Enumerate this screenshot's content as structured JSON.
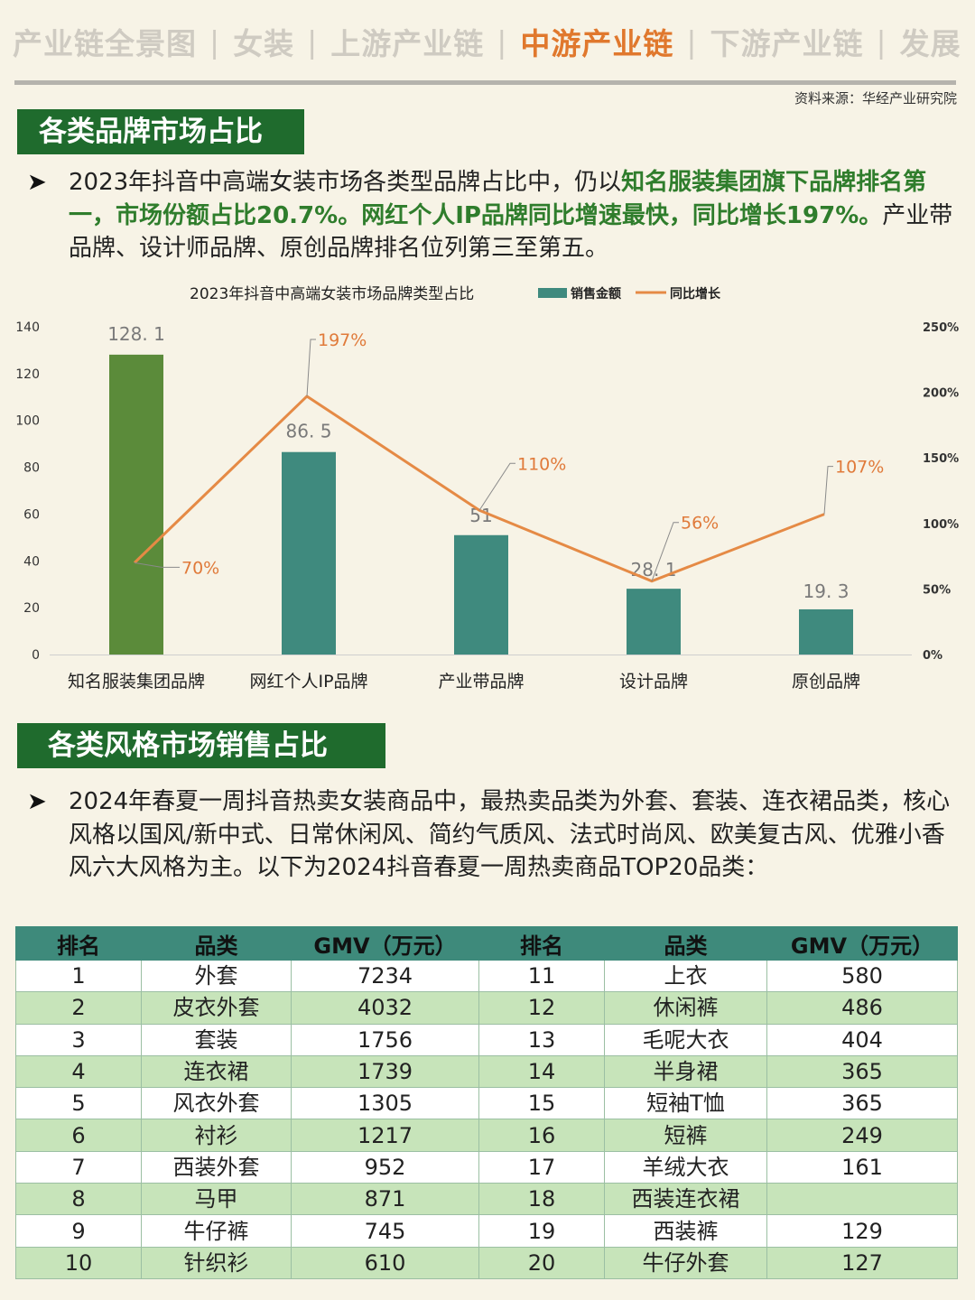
{
  "nav": {
    "items": [
      "产业链全景图",
      "女装",
      "上游产业链",
      "中游产业链",
      "下游产业链",
      "发展"
    ],
    "active_index": 3,
    "separator": "|"
  },
  "source": "资料来源：华经产业研究院",
  "section1": {
    "title": "各类品牌市场占比",
    "bullet": "➤",
    "para_parts": [
      {
        "text": "2023年抖音中高端女装市场各类型品牌占比中，仍以",
        "hl": false
      },
      {
        "text": "知名服装集团旗下品牌排名第一，市场份额占比20.7%。网红个人IP品牌同比增速最快，同比增长197%。",
        "hl": true
      },
      {
        "text": "产业带品牌、设计师品牌、原创品牌排名位列第三至第五。",
        "hl": false
      }
    ]
  },
  "chart_data": {
    "type": "bar",
    "title": "2023年抖音中高端女装市场品牌类型占比",
    "categories": [
      "知名服装集团品牌",
      "网红个人IP品牌",
      "产业带品牌",
      "设计品牌",
      "原创品牌"
    ],
    "series": [
      {
        "name": "销售金额",
        "type": "bar",
        "axis": "left",
        "values": [
          128.1,
          86.5,
          51,
          28.1,
          19.3
        ],
        "labels": [
          "128. 1",
          "86. 5",
          "51",
          "28. 1",
          "19. 3"
        ]
      },
      {
        "name": "同比增长",
        "type": "line",
        "axis": "right",
        "values": [
          70,
          197,
          110,
          56,
          107
        ],
        "labels": [
          "70%",
          "197%",
          "110%",
          "56%",
          "107%"
        ]
      }
    ],
    "y_left": {
      "min": 0,
      "max": 140,
      "ticks": [
        0,
        20,
        40,
        60,
        80,
        100,
        120,
        140
      ]
    },
    "y_right": {
      "min": 0,
      "max": 250,
      "ticks": [
        "0%",
        "50%",
        "100%",
        "150%",
        "200%",
        "250%"
      ]
    },
    "grid": false,
    "legend": "top",
    "colors": {
      "highlight_bar": "#5b8b3a",
      "bar": "#3f8a7e",
      "line": "#e58a45",
      "label": "#7a7a7a",
      "line_label": "#e07a3a"
    }
  },
  "section2": {
    "title": "各类风格市场销售占比",
    "bullet": "➤",
    "para": "2024年春夏一周抖音热卖女装商品中，最热卖品类为外套、套装、连衣裙品类，核心风格以国风/新中式、日常休闲风、简约气质风、法式时尚风、欧美复古风、优雅小香风六大风格为主。以下为2024抖音春夏一周热卖商品TOP20品类："
  },
  "table": {
    "headers": [
      "排名",
      "品类",
      "GMV（万元）",
      "排名",
      "品类",
      "GMV（万元）"
    ],
    "rows": [
      [
        "1",
        "外套",
        "7234",
        "11",
        "上衣",
        "580"
      ],
      [
        "2",
        "皮衣外套",
        "4032",
        "12",
        "休闲裤",
        "486"
      ],
      [
        "3",
        "套装",
        "1756",
        "13",
        "毛呢大衣",
        "404"
      ],
      [
        "4",
        "连衣裙",
        "1739",
        "14",
        "半身裙",
        "365"
      ],
      [
        "5",
        "风衣外套",
        "1305",
        "15",
        "短袖T恤",
        "365"
      ],
      [
        "6",
        "衬衫",
        "1217",
        "16",
        "短裤",
        "249"
      ],
      [
        "7",
        "西装外套",
        "952",
        "17",
        "羊绒大衣",
        "161"
      ],
      [
        "8",
        "马甲",
        "871",
        "18",
        "西装连衣裙",
        ""
      ],
      [
        "9",
        "牛仔裤",
        "745",
        "19",
        "西装裤",
        "129"
      ],
      [
        "10",
        "针织衫",
        "610",
        "20",
        "牛仔外套",
        "127"
      ]
    ]
  }
}
